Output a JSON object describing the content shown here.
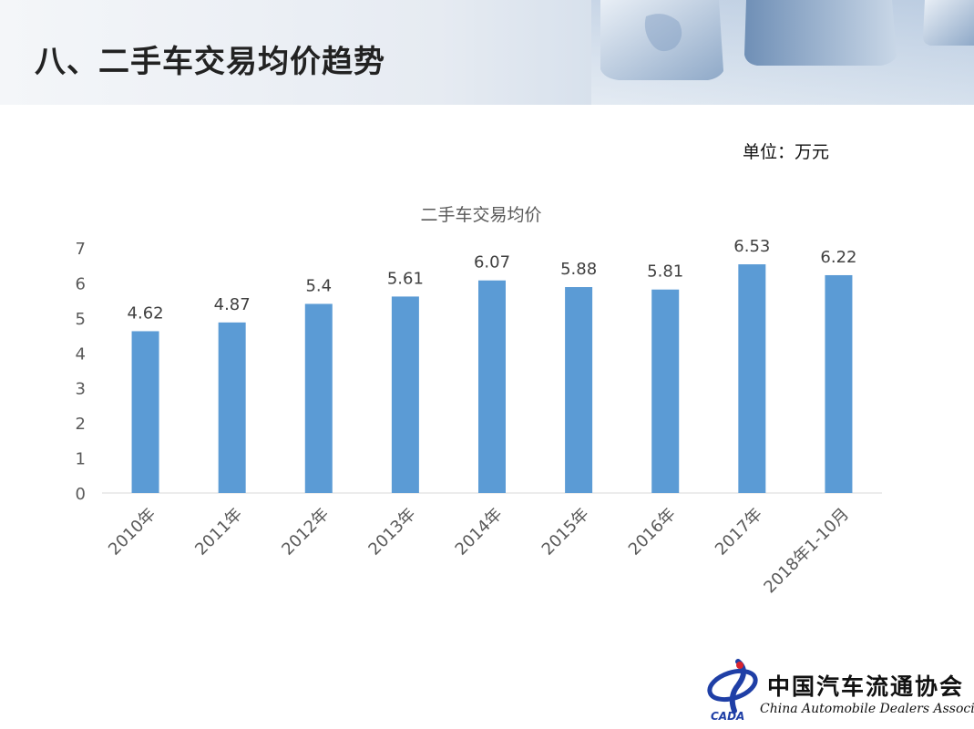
{
  "slide": {
    "title": "八、二手车交易均价趋势",
    "unit": "单位：万元"
  },
  "logo": {
    "cn": "中国汽车流通协会",
    "en": "China Automobile Dealers Association",
    "abbr": "CADA"
  },
  "colors": {
    "bar": "#5b9bd5",
    "axis_text": "#595959",
    "gridline": "#d9d9d9"
  },
  "chart_data": {
    "type": "bar",
    "title": "二手车交易均价",
    "categories": [
      "2010年",
      "2011年",
      "2012年",
      "2013年",
      "2014年",
      "2015年",
      "2016年",
      "2017年",
      "2018年1-10月"
    ],
    "values": [
      4.62,
      4.87,
      5.4,
      5.61,
      6.07,
      5.88,
      5.81,
      6.53,
      6.22
    ],
    "data_labels": [
      "4.62",
      "4.87",
      "5.4",
      "5.61",
      "6.07",
      "5.88",
      "5.81",
      "6.53",
      "6.22"
    ],
    "yticks": [
      "0",
      "1",
      "2",
      "3",
      "4",
      "5",
      "6",
      "7"
    ],
    "ylim": [
      0,
      7
    ],
    "grid": false,
    "legend": "none"
  }
}
